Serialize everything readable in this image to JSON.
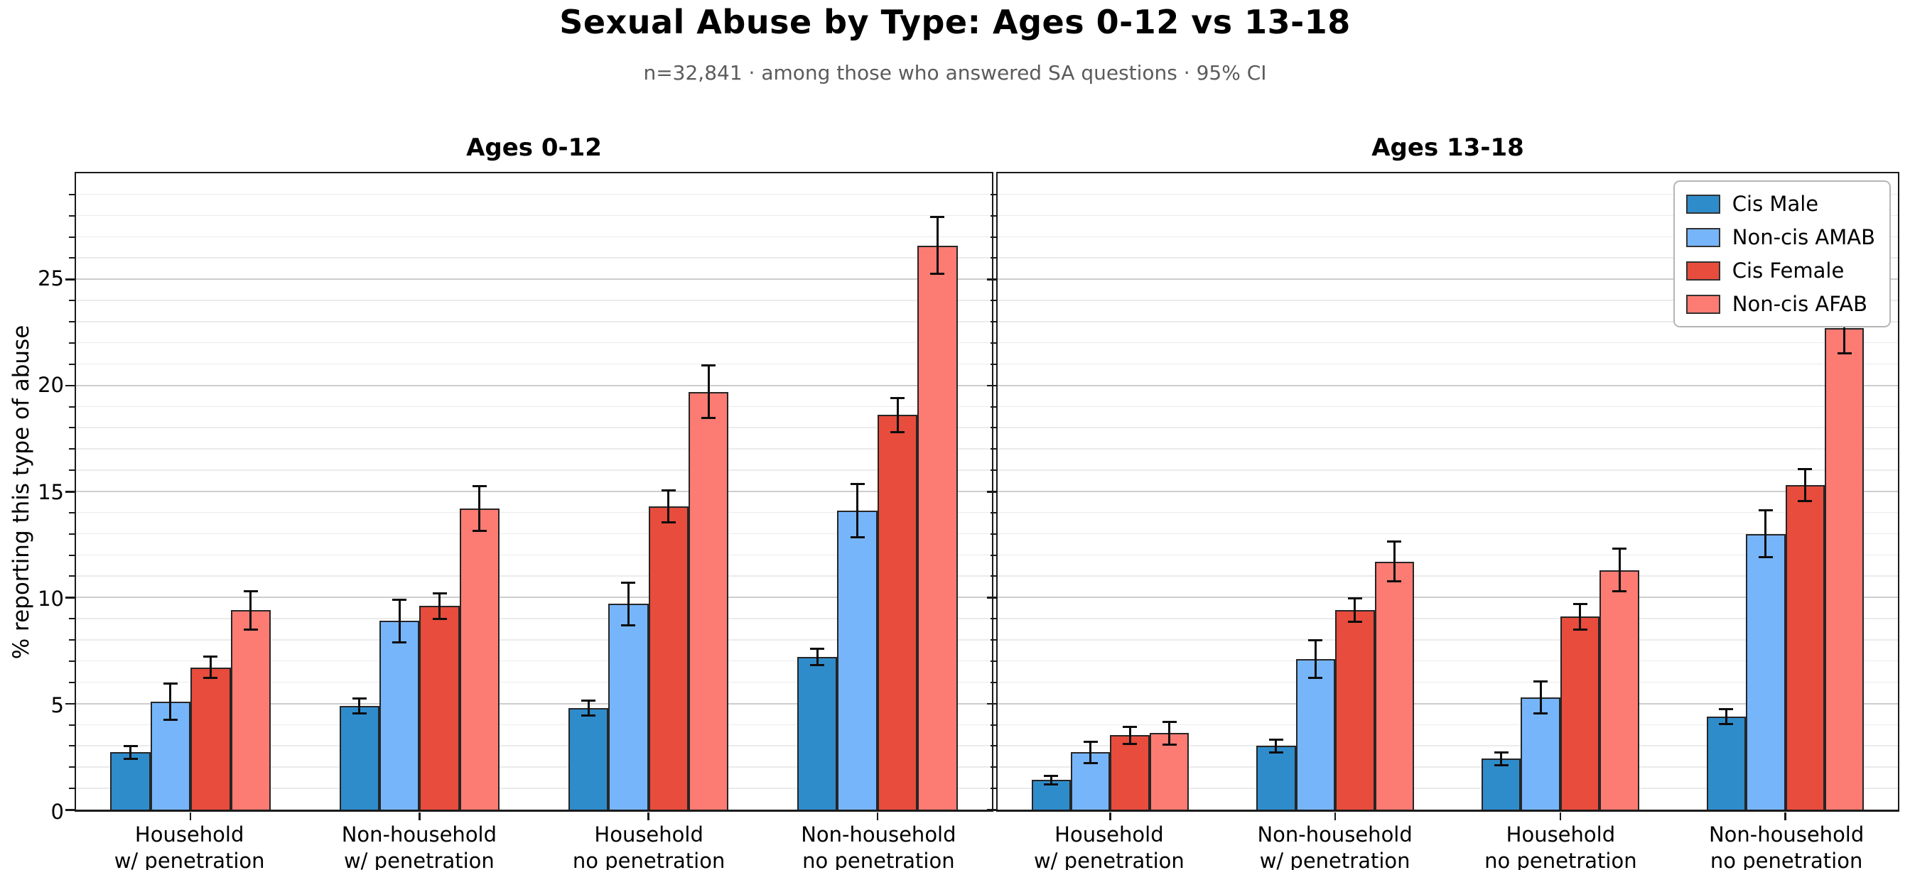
{
  "figure": {
    "title": "Sexual Abuse by Type: Ages 0-12 vs 13-18",
    "subtitle": "n=32,841 · among those who answered SA questions · 95% CI"
  },
  "axes": {
    "ylabel": "% reporting this type of abuse",
    "ylim": [
      0,
      30
    ],
    "yticks": [
      0,
      5,
      10,
      15,
      20,
      25
    ],
    "minor_tick_step": 1,
    "major_tick_step": 5,
    "grid": "horizontal minor+major, left panel shows tick labels, right panel shares axis"
  },
  "legend": {
    "position": "upper right of right panel",
    "entries": [
      {
        "label": "Cis Male",
        "color": "#2f8ccb"
      },
      {
        "label": "Non-cis AMAB",
        "color": "#77b5fb"
      },
      {
        "label": "Cis Female",
        "color": "#e74c3c"
      },
      {
        "label": "Non-cis AFAB",
        "color": "#fc7b73"
      }
    ]
  },
  "chart_data": [
    {
      "type": "bar",
      "title": "Ages 0-12",
      "categories": [
        "Household\nw/ penetration",
        "Non-household\nw/ penetration",
        "Household\nno penetration",
        "Non-household\nno penetration"
      ],
      "ylim": [
        0,
        30
      ],
      "yticks": [
        0,
        5,
        10,
        15,
        20,
        25
      ],
      "error_bars": "95% CI",
      "series": [
        {
          "name": "Cis Male",
          "color": "#2f8ccb",
          "values": [
            2.7,
            4.9,
            4.8,
            7.2
          ],
          "errors": [
            0.3,
            0.35,
            0.35,
            0.4
          ]
        },
        {
          "name": "Non-cis AMAB",
          "color": "#77b5fb",
          "values": [
            5.1,
            8.9,
            9.7,
            14.1
          ],
          "errors": [
            0.85,
            1.0,
            1.0,
            1.25
          ]
        },
        {
          "name": "Cis Female",
          "color": "#e74c3c",
          "values": [
            6.7,
            9.6,
            14.3,
            18.6
          ],
          "errors": [
            0.5,
            0.6,
            0.75,
            0.8
          ]
        },
        {
          "name": "Non-cis AFAB",
          "color": "#fc7b73",
          "values": [
            9.4,
            14.2,
            19.7,
            26.6
          ],
          "errors": [
            0.9,
            1.05,
            1.25,
            1.35
          ]
        }
      ],
      "show_legend": false,
      "show_ytick_labels": true
    },
    {
      "type": "bar",
      "title": "Ages 13-18",
      "categories": [
        "Household\nw/ penetration",
        "Non-household\nw/ penetration",
        "Household\nno penetration",
        "Non-household\nno penetration"
      ],
      "ylim": [
        0,
        30
      ],
      "yticks": [
        0,
        5,
        10,
        15,
        20,
        25
      ],
      "error_bars": "95% CI",
      "series": [
        {
          "name": "Cis Male",
          "color": "#2f8ccb",
          "values": [
            1.4,
            3.0,
            2.4,
            4.4
          ],
          "errors": [
            0.2,
            0.3,
            0.3,
            0.35
          ]
        },
        {
          "name": "Non-cis AMAB",
          "color": "#77b5fb",
          "values": [
            2.7,
            7.1,
            5.3,
            13.0
          ],
          "errors": [
            0.5,
            0.9,
            0.75,
            1.1
          ]
        },
        {
          "name": "Cis Female",
          "color": "#e74c3c",
          "values": [
            3.5,
            9.4,
            9.1,
            15.3
          ],
          "errors": [
            0.4,
            0.55,
            0.6,
            0.75
          ]
        },
        {
          "name": "Non-cis AFAB",
          "color": "#fc7b73",
          "values": [
            3.6,
            11.7,
            11.3,
            22.7
          ],
          "errors": [
            0.55,
            0.95,
            1.0,
            1.2
          ]
        }
      ],
      "show_legend": true,
      "show_ytick_labels": false
    }
  ]
}
